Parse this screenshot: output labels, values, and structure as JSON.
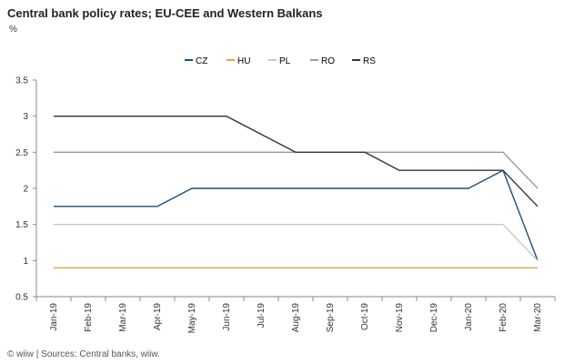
{
  "header": {
    "title": "Central bank policy rates; EU-CEE and Western Balkans",
    "unit": "%"
  },
  "footer": {
    "source": "© wiiw | Sources: Central banks, wiiw."
  },
  "chart_data": {
    "type": "line",
    "title": "Central bank policy rates; EU-CEE and Western Balkans",
    "ylabel": "%",
    "xlabel": "",
    "ylim": [
      0.5,
      3.5
    ],
    "yticks": [
      0.5,
      1,
      1.5,
      2,
      2.5,
      3,
      3.5
    ],
    "grid": false,
    "legend_position": "top",
    "categories": [
      "Jan-19",
      "Feb-19",
      "Mar-19",
      "Apr-19",
      "May-19",
      "Jun-19",
      "Jul-19",
      "Aug-19",
      "Sep-19",
      "Oct-19",
      "Nov-19",
      "Dec-19",
      "Jan-20",
      "Feb-20",
      "Mar-20"
    ],
    "series": [
      {
        "name": "CZ",
        "color": "#1f4e79",
        "values": [
          1.75,
          1.75,
          1.75,
          1.75,
          2.0,
          2.0,
          2.0,
          2.0,
          2.0,
          2.0,
          2.0,
          2.0,
          2.0,
          2.25,
          1.0
        ]
      },
      {
        "name": "HU",
        "color": "#e8a33d",
        "values": [
          0.9,
          0.9,
          0.9,
          0.9,
          0.9,
          0.9,
          0.9,
          0.9,
          0.9,
          0.9,
          0.9,
          0.9,
          0.9,
          0.9,
          0.9
        ]
      },
      {
        "name": "PL",
        "color": "#c8c8c8",
        "values": [
          1.5,
          1.5,
          1.5,
          1.5,
          1.5,
          1.5,
          1.5,
          1.5,
          1.5,
          1.5,
          1.5,
          1.5,
          1.5,
          1.5,
          1.0
        ]
      },
      {
        "name": "RO",
        "color": "#999999",
        "values": [
          2.5,
          2.5,
          2.5,
          2.5,
          2.5,
          2.5,
          2.5,
          2.5,
          2.5,
          2.5,
          2.5,
          2.5,
          2.5,
          2.5,
          2.0
        ]
      },
      {
        "name": "RS",
        "color": "#333333",
        "values": [
          3.0,
          3.0,
          3.0,
          3.0,
          3.0,
          3.0,
          2.75,
          2.5,
          2.5,
          2.5,
          2.25,
          2.25,
          2.25,
          2.25,
          1.75
        ]
      }
    ]
  }
}
